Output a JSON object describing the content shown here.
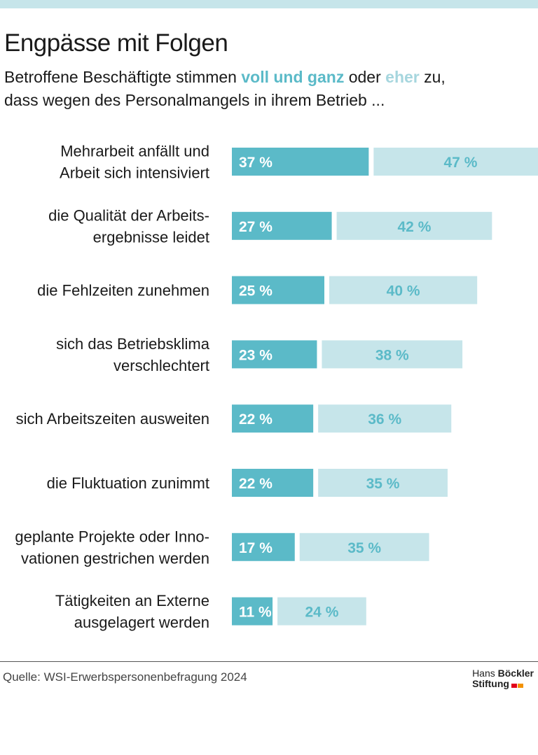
{
  "colors": {
    "strong": "#5bbac8",
    "weak": "#c6e5ea",
    "strong_text": "#5bbac8",
    "weak_text": "#a6d6de",
    "topbar": "#c6e5ea",
    "logo_red": "#e2001a",
    "logo_orange": "#f39200"
  },
  "header": {
    "title": "Engpässe mit Folgen",
    "subtitle_part1": "Betroffene Beschäftigte stimmen ",
    "subtitle_strong": "voll und ganz",
    "subtitle_part2": " oder ",
    "subtitle_weak": "eher",
    "subtitle_part3": " zu,",
    "subtitle_line2": "dass wegen des Personalmangels in ihrem Betrieb ..."
  },
  "chart_data": {
    "type": "bar",
    "orientation": "horizontal",
    "stacked": true,
    "unit": "%",
    "title": "Engpässe mit Folgen",
    "categories": [
      [
        "Mehrarbeit anfällt und",
        "Arbeit sich intensiviert"
      ],
      [
        "die Qualität der Arbeits-",
        "ergebnisse leidet"
      ],
      [
        "die Fehlzeiten zunehmen"
      ],
      [
        "sich das Betriebsklima",
        "verschlechtert"
      ],
      [
        "sich Arbeitszeiten ausweiten"
      ],
      [
        "die Fluktuation zunimmt"
      ],
      [
        "geplante Projekte oder Inno-",
        "vationen gestrichen werden"
      ],
      [
        "Tätigkeiten an Externe",
        "ausgelagert werden"
      ]
    ],
    "series": [
      {
        "name": "voll und ganz",
        "values": [
          37,
          27,
          25,
          23,
          22,
          22,
          17,
          11
        ]
      },
      {
        "name": "eher",
        "values": [
          47,
          42,
          40,
          38,
          36,
          35,
          35,
          24
        ]
      }
    ],
    "legend": "inline in subtitle"
  },
  "footer": {
    "source": "Quelle: WSI-Erwerbspersonenbefragung 2024",
    "logo_line1_a": "Hans ",
    "logo_line1_b": "Böckler",
    "logo_line2": "Stiftung"
  }
}
